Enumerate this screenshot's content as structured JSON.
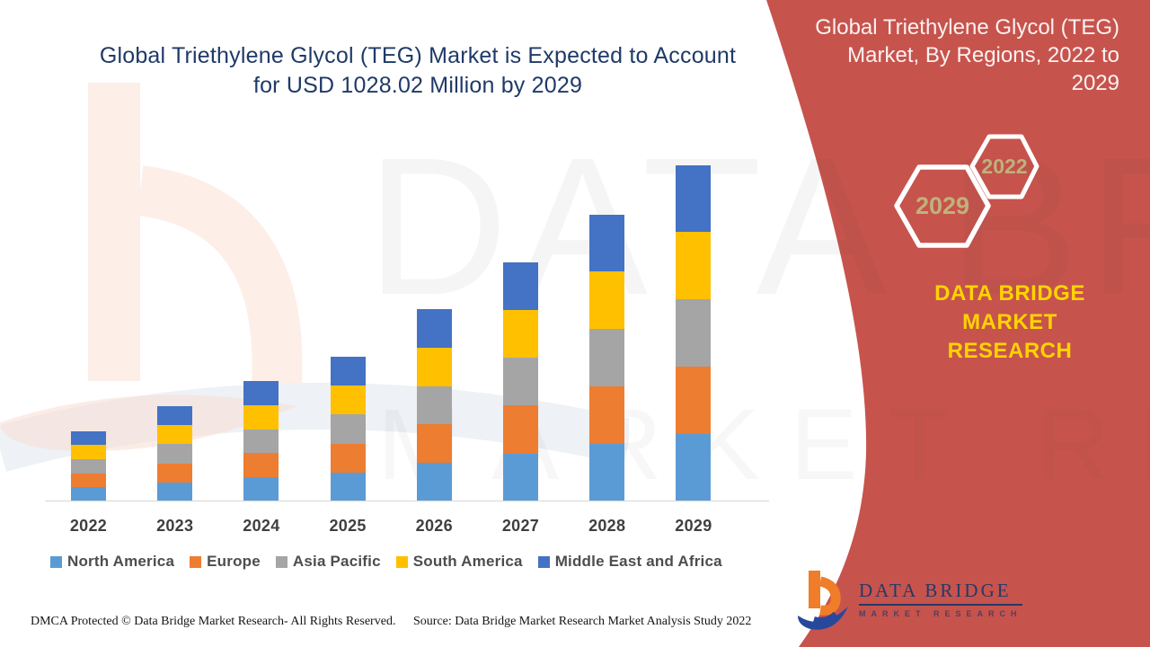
{
  "left_title": {
    "line1": "Global Triethylene Glycol (TEG) Market is Expected to Account",
    "line2": "for USD 1028.02 Million by 2029"
  },
  "right_panel": {
    "title_lines": [
      "Global Triethylene Glycol (TEG)",
      "Market, By Regions, 2022 to",
      "2029"
    ],
    "hexagons": [
      {
        "label": "2029"
      },
      {
        "label": "2022"
      }
    ],
    "brand_line1": "DATA BRIDGE MARKET",
    "brand_line2": "RESEARCH",
    "background_color": "#c7534d",
    "brand_text_color": "#ffd400",
    "hexagon_text_color": "#bfb27a"
  },
  "chart_data": {
    "type": "bar",
    "stacked": true,
    "title": "Global Triethylene Glycol (TEG) Market, By Regions, 2022 to 2029",
    "unit": "USD Million",
    "categories": [
      "2022",
      "2023",
      "2024",
      "2025",
      "2026",
      "2027",
      "2028",
      "2029"
    ],
    "series": [
      {
        "name": "North America",
        "color": "#5B9BD5",
        "values": [
          43.1,
          58.2,
          73.6,
          88.4,
          117.5,
          146.4,
          175.4,
          205.6
        ]
      },
      {
        "name": "Europe",
        "color": "#ED7D31",
        "values": [
          43.1,
          58.2,
          73.6,
          88.4,
          117.5,
          146.4,
          175.4,
          205.6
        ]
      },
      {
        "name": "Asia Pacific",
        "color": "#A5A5A5",
        "values": [
          43.1,
          58.2,
          73.6,
          88.4,
          117.5,
          146.4,
          175.4,
          205.6
        ]
      },
      {
        "name": "South America",
        "color": "#FFC000",
        "values": [
          43.1,
          58.2,
          73.6,
          88.4,
          117.5,
          146.4,
          175.4,
          205.6
        ]
      },
      {
        "name": "Middle East and Africa",
        "color": "#4472C4",
        "values": [
          43.1,
          58.2,
          73.6,
          88.4,
          117.5,
          146.4,
          175.4,
          205.6
        ]
      }
    ],
    "totals": [
      215.6,
      291.1,
      368.0,
      442.1,
      587.6,
      732.1,
      877.1,
      1028.02
    ],
    "y_axis_visible": false,
    "legend_position": "bottom",
    "note": "No y-axis shown in source; values estimated from bar heights with 2029 total anchored to USD 1028.02 Million stated in title."
  },
  "watermark": {
    "line1": "DATA BRIDGE",
    "line2": "MARKET RESEARCH"
  },
  "footer": {
    "left": "DMCA Protected © Data Bridge Market Research- All Rights Reserved.",
    "right": "Source: Data Bridge Market Research Market Analysis Study 2022"
  },
  "logo": {
    "name": "DATA BRIDGE",
    "subtitle": "MARKET RESEARCH"
  }
}
